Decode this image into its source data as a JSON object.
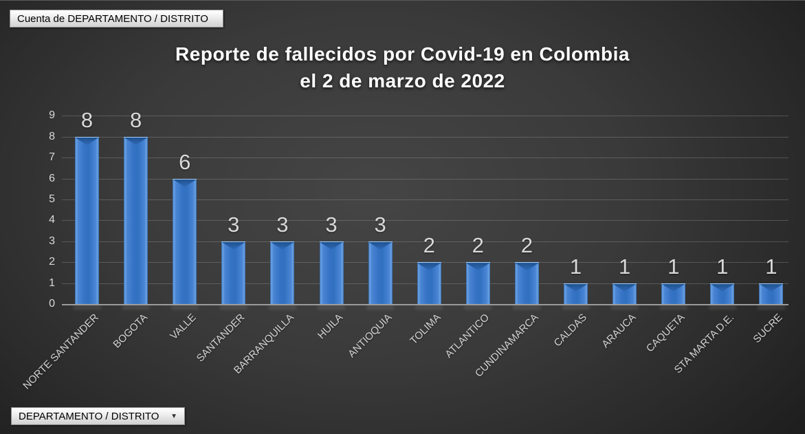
{
  "field_buttons": {
    "count_button_label": "Cuenta de DEPARTAMENTO / DISTRITO",
    "axis_button_label": "DEPARTAMENTO / DISTRITO",
    "dropdown_icon": "▼"
  },
  "chart_data": {
    "type": "bar",
    "title": "Reporte de fallecidos por Covid-19 en Colombia el 2 de marzo de 2022",
    "title_line1": "Reporte de fallecidos por Covid-19 en Colombia",
    "title_line2": "el 2 de marzo de 2022",
    "categories": [
      "NORTE SANTANDER",
      "BOGOTA",
      "VALLE",
      "SANTANDER",
      "BARRANQUILLA",
      "HUILA",
      "ANTIOQUIA",
      "TOLIMA",
      "ATLANTICO",
      "CUNDINAMARCA",
      "CALDAS",
      "ARAUCA",
      "CAQUETA",
      "STA MARTA D.E.",
      "SUCRE"
    ],
    "values": [
      8,
      8,
      6,
      3,
      3,
      3,
      3,
      2,
      2,
      2,
      1,
      1,
      1,
      1,
      1
    ],
    "xlabel": "",
    "ylabel": "",
    "ylim": [
      0,
      9
    ],
    "yticks": [
      0,
      1,
      2,
      3,
      4,
      5,
      6,
      7,
      8,
      9
    ],
    "grid": true,
    "legend": "none",
    "data_labels": true,
    "colors": {
      "bar": "#3672c4",
      "bar_highlight": "#6ba3e4",
      "bar_bevel": "#1f528f",
      "label_text": "#d9d9d9",
      "axis_text": "#d9d9d9",
      "title_text": "#ffffff",
      "gridline": "#8f8f8f",
      "background_center": "#454545",
      "background_edge": "#1d1d1d",
      "button_face": "#e8e8e8"
    }
  }
}
